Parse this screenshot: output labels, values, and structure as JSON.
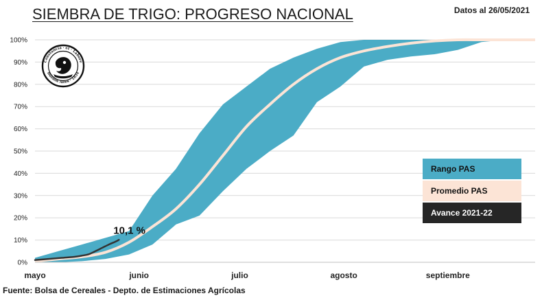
{
  "title": "SIEMBRA DE TRIGO: PROGRESO NACIONAL",
  "date_note": "Datos al 26/05/2021",
  "source": "Fuente: Bolsa de Cereales - Depto. de Estimaciones Agrícolas",
  "logo": {
    "text_top": "Constancia · et · Labore",
    "text_bottom": "Buenos Aires · 1854"
  },
  "colors": {
    "range": "#4bacc6",
    "average": "#fce4d6",
    "current": "#333333"
  },
  "chart_data": {
    "type": "area",
    "x_unit": "days from May 1",
    "x_ticks": [
      {
        "label": "mayo",
        "day": 0
      },
      {
        "label": "junio",
        "day": 31
      },
      {
        "label": "julio",
        "day": 61
      },
      {
        "label": "agosto",
        "day": 92
      },
      {
        "label": "septiembre",
        "day": 123
      }
    ],
    "ylim": [
      0,
      100
    ],
    "y_ticks": [
      "0%",
      "10%",
      "20%",
      "30%",
      "40%",
      "50%",
      "60%",
      "70%",
      "80%",
      "90%",
      "100%"
    ],
    "grid": true,
    "legend_position": "right",
    "series": [
      {
        "name": "Rango PAS (máximo)",
        "kind": "range_upper",
        "x": [
          0,
          7,
          14,
          21,
          28,
          35,
          42,
          49,
          56,
          63,
          70,
          77,
          84,
          91,
          98,
          105,
          112,
          119,
          126,
          133,
          140,
          149
        ],
        "y": [
          2,
          5,
          8,
          11,
          14,
          30,
          42,
          58,
          71,
          79,
          87,
          92,
          96,
          99,
          100,
          100,
          100,
          100,
          100,
          100,
          100,
          100
        ]
      },
      {
        "name": "Rango PAS (mínimo)",
        "kind": "range_lower",
        "x": [
          0,
          7,
          14,
          21,
          28,
          35,
          42,
          49,
          56,
          63,
          70,
          77,
          84,
          91,
          98,
          105,
          112,
          119,
          126,
          133,
          140,
          149
        ],
        "y": [
          0,
          0,
          0.5,
          1.5,
          3.5,
          8,
          17,
          21,
          32,
          42,
          50,
          57,
          72,
          79,
          88,
          91,
          92.5,
          93.5,
          95.5,
          99,
          100,
          100
        ]
      },
      {
        "name": "Promedio PAS",
        "kind": "line",
        "x": [
          0,
          7,
          14,
          21,
          28,
          35,
          42,
          49,
          56,
          63,
          70,
          77,
          84,
          91,
          98,
          105,
          112,
          119,
          126,
          133,
          140,
          149
        ],
        "y": [
          0.5,
          1.5,
          2.5,
          4.5,
          9,
          16,
          24,
          35,
          48,
          61,
          71,
          80,
          87,
          92,
          95,
          97,
          98.5,
          99.5,
          100,
          100,
          100,
          100
        ]
      },
      {
        "name": "Avance 2021-22",
        "kind": "current",
        "x": [
          0,
          4,
          8,
          12,
          14,
          16,
          18,
          20,
          22,
          24,
          25
        ],
        "y": [
          1,
          1.5,
          2,
          2.5,
          3,
          3.6,
          5,
          6.5,
          8,
          9.3,
          10.1
        ]
      }
    ],
    "legend": [
      "Rango PAS",
      "Promedio PAS",
      "Avance 2021-22"
    ],
    "annotation": {
      "text": "10,1 %",
      "day": 25,
      "value": 10.1
    }
  }
}
